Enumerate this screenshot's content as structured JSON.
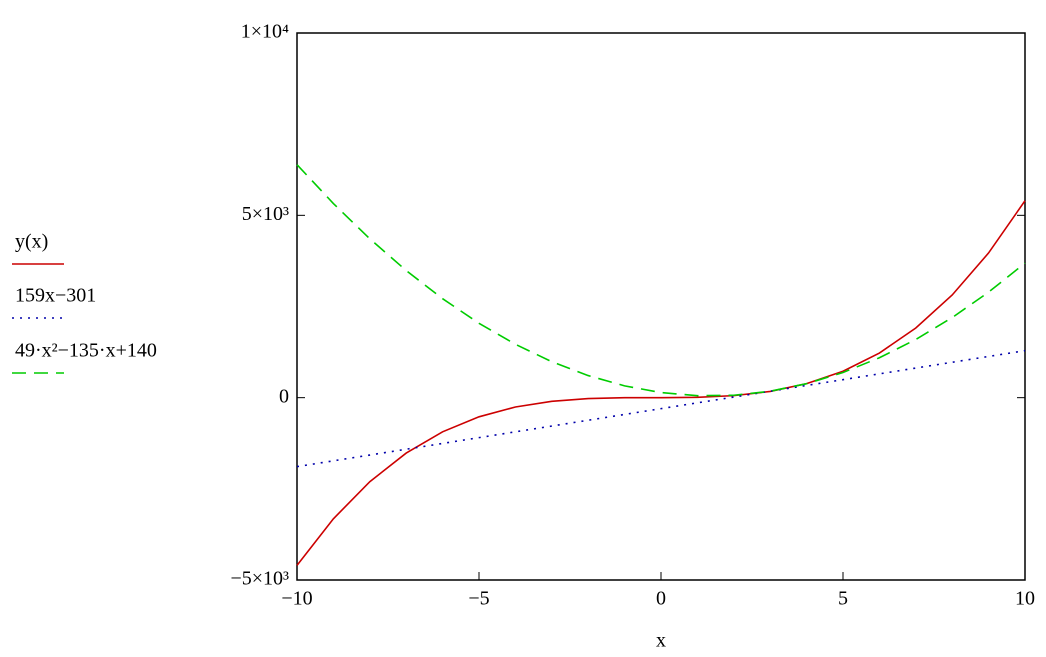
{
  "chart_data": {
    "type": "line",
    "x_label": "x",
    "x": [
      -10,
      -9,
      -8,
      -7,
      -6,
      -5,
      -4,
      -3,
      -2,
      -1,
      0,
      1,
      2,
      3,
      4,
      5,
      6,
      7,
      8,
      9,
      10
    ],
    "series": [
      {
        "name": "y(x)",
        "color": "#cc0000",
        "style": "solid",
        "values": [
          -4600,
          -3321,
          -2304,
          -1519,
          -936,
          -525,
          -256,
          -99,
          -24,
          -1,
          0,
          9,
          56,
          171,
          384,
          725,
          1224,
          1911,
          2816,
          3969,
          5400
        ]
      },
      {
        "name": "159x−301",
        "color": "#0000aa",
        "style": "dotted",
        "values": [
          -1891,
          -1732,
          -1573,
          -1414,
          -1255,
          -1096,
          -937,
          -778,
          -619,
          -460,
          -301,
          -142,
          17,
          176,
          335,
          494,
          653,
          812,
          971,
          1130,
          1289
        ]
      },
      {
        "name": "49·x²−135·x+140",
        "color": "#00cc00",
        "style": "dashed",
        "values": [
          6390,
          5324,
          4356,
          3486,
          2714,
          2040,
          1464,
          986,
          606,
          324,
          140,
          54,
          66,
          176,
          384,
          690,
          1094,
          1596,
          2196,
          2894,
          3690
        ]
      }
    ],
    "xlim": [
      -10,
      10
    ],
    "xticks": [
      {
        "value": -10,
        "label": "−10"
      },
      {
        "value": -5,
        "label": "−5"
      },
      0,
      5,
      10
    ],
    "ylim": [
      -5000,
      10000
    ],
    "yticks": [
      {
        "value": -5000,
        "label": "−5×10³"
      },
      0,
      {
        "value": 5000,
        "label": "5×10³"
      },
      {
        "value": 10000,
        "label": "1×10⁴"
      }
    ],
    "legend": "left"
  }
}
